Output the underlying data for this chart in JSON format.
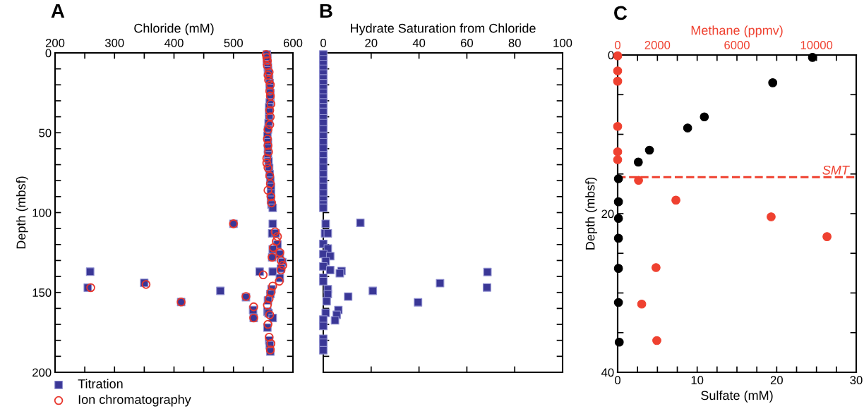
{
  "chart_data": [
    {
      "type": "scatter",
      "xlabel": "Chloride (mM)",
      "ylabel": "Depth (mbsf)",
      "annotations": [
        "A"
      ],
      "xlim": [
        200,
        600
      ],
      "xticks": [
        200,
        {
          "value": 250,
          "label": null
        },
        300,
        {
          "value": 350,
          "label": null
        },
        400,
        {
          "value": 450,
          "label": null
        },
        500,
        {
          "value": 550,
          "label": null
        },
        600
      ],
      "ylim": [
        200,
        0
      ],
      "yticks": [
        0,
        {
          "value": 10,
          "label": null
        },
        {
          "value": 20,
          "label": null
        },
        {
          "value": 30,
          "label": null
        },
        {
          "value": 40,
          "label": null
        },
        50,
        {
          "value": 60,
          "label": null
        },
        {
          "value": 70,
          "label": null
        },
        {
          "value": 80,
          "label": null
        },
        {
          "value": 90,
          "label": null
        },
        100,
        {
          "value": 110,
          "label": null
        },
        {
          "value": 120,
          "label": null
        },
        {
          "value": 130,
          "label": null
        },
        {
          "value": 140,
          "label": null
        },
        150,
        {
          "value": 160,
          "label": null
        },
        {
          "value": 170,
          "label": null
        },
        {
          "value": 180,
          "label": null
        },
        {
          "value": 190,
          "label": null
        },
        200
      ],
      "legend": "bottom",
      "grid": false,
      "series": [
        {
          "name": "Titration",
          "color": "#3a3796",
          "marker": "square",
          "x": [
            556,
            557,
            556,
            557,
            558,
            558,
            559,
            560,
            561,
            561,
            562,
            562,
            561,
            560,
            560,
            560,
            559,
            558,
            557,
            558,
            558,
            558,
            559,
            560,
            561,
            562,
            563,
            563,
            563,
            564,
            566,
            500,
            566,
            565,
            571,
            574,
            566,
            578,
            565,
            582,
            580,
            259,
            544,
            566,
            578,
            350,
            255,
            564,
            478,
            562,
            521,
            558,
            412,
            533,
            557,
            559,
            534,
            566,
            557,
            560,
            561,
            562
          ],
          "values": [
            1,
            3,
            5,
            7,
            9,
            11,
            13,
            16,
            19,
            22,
            25,
            28,
            31,
            34,
            37,
            41,
            44,
            48,
            52,
            56,
            60,
            64,
            68,
            72,
            76,
            80,
            84,
            88,
            92,
            95,
            97,
            107,
            107,
            113,
            113,
            120,
            123,
            126,
            128,
            131,
            135,
            137,
            137,
            137,
            141,
            144,
            147,
            148,
            149,
            151,
            153,
            155,
            156,
            161,
            162,
            163,
            166,
            166,
            172,
            180,
            183,
            187
          ]
        },
        {
          "name": "Ion chromatography",
          "color": "#e8352b",
          "marker": "circle",
          "x": [
            555,
            556,
            557,
            557,
            560,
            558,
            559,
            562,
            561,
            562,
            563,
            561,
            562,
            561,
            558,
            557,
            558,
            559,
            556,
            556,
            558,
            561,
            562,
            558,
            563,
            564,
            500,
            570,
            574,
            572,
            567,
            578,
            565,
            580,
            583,
            580,
            550,
            577,
            260,
            353,
            566,
            563,
            560,
            412,
            521,
            534,
            534,
            557,
            561,
            558,
            560,
            563,
            562
          ],
          "values": [
            1,
            3,
            5,
            8,
            12,
            14,
            17,
            20,
            24,
            27,
            32,
            36,
            40,
            45,
            48,
            54,
            58,
            62,
            66,
            69,
            72,
            77,
            82,
            86,
            90,
            94,
            107,
            112,
            115,
            118,
            122,
            125,
            128,
            130,
            133,
            136,
            139,
            143,
            147,
            145,
            146,
            150,
            154,
            156,
            152.5,
            159,
            166,
            158,
            164,
            170,
            178,
            182,
            186
          ]
        }
      ]
    },
    {
      "type": "scatter",
      "xlabel": "Hydrate Saturation from Chloride",
      "annotations": [
        "B"
      ],
      "tick_labels": "x",
      "xlim": [
        0,
        100
      ],
      "xticks": [
        0,
        20,
        40,
        60,
        80,
        100
      ],
      "ylim": [
        200,
        0
      ],
      "yticks": [
        0,
        10,
        20,
        30,
        40,
        50,
        60,
        70,
        80,
        90,
        100,
        110,
        120,
        130,
        140,
        150,
        160,
        170,
        180,
        190,
        200
      ],
      "grid": false,
      "series": [
        {
          "color": "#3a3796",
          "marker": "square",
          "x": [
            0,
            0,
            0,
            0,
            0,
            0,
            0,
            0,
            0,
            0,
            0,
            0,
            0,
            0,
            0,
            0,
            0,
            0,
            0,
            0,
            0,
            0,
            0,
            0,
            0,
            0,
            0,
            0,
            0,
            15.5,
            1,
            0.7,
            1.9,
            0,
            1.9,
            0,
            2.9,
            1,
            0,
            68.6,
            2.9,
            7.6,
            6.9,
            0,
            0,
            48.8,
            68.4,
            1.9,
            20.7,
            1.9,
            10.4,
            1.4,
            39.6,
            6.3,
            1,
            5.6,
            4.9,
            0,
            0,
            0,
            0,
            0
          ],
          "values": [
            1,
            4,
            7,
            10,
            13,
            16,
            19,
            22,
            25,
            28,
            31,
            34,
            37,
            41,
            44,
            48,
            52,
            56,
            60,
            64,
            68,
            72,
            76,
            80,
            84,
            88,
            92,
            95,
            97,
            106.4,
            107,
            113,
            113,
            119.6,
            122.5,
            126,
            127.3,
            130.5,
            133.7,
            137.2,
            136,
            136.6,
            138,
            140.8,
            143,
            144.2,
            146.9,
            148,
            149,
            151,
            152.6,
            155.5,
            156.2,
            161,
            162.8,
            164,
            167.5,
            167,
            171,
            179,
            181.5,
            186.2
          ]
        }
      ]
    },
    {
      "type": "scatter",
      "xlabel": "Sulfate (mM)",
      "x2label": "Methane (ppmv)",
      "ylabel": "Depth (mbsf)",
      "annotations": [
        "C"
      ],
      "xlim": [
        0,
        30
      ],
      "xticks": [
        0,
        {
          "value": 2.5,
          "label": null
        },
        {
          "value": 5,
          "label": null
        },
        {
          "value": 7.5,
          "label": null
        },
        10,
        {
          "value": 12.5,
          "label": null
        },
        {
          "value": 15,
          "label": null
        },
        {
          "value": 17.5,
          "label": null
        },
        20,
        {
          "value": 22.5,
          "label": null
        },
        {
          "value": 25,
          "label": null
        },
        {
          "value": 27.5,
          "label": null
        },
        30
      ],
      "x2lim": [
        0,
        12000
      ],
      "x2ticks": [
        0,
        {
          "value": 1000,
          "label": null
        },
        2000,
        {
          "value": 3000,
          "label": null
        },
        {
          "value": 4000,
          "label": null
        },
        {
          "value": 5000,
          "label": null
        },
        6000,
        {
          "value": 7000,
          "label": null
        },
        {
          "value": 8000,
          "label": null
        },
        {
          "value": 9000,
          "label": null
        },
        10000,
        {
          "value": 11000,
          "label": null
        },
        {
          "value": 12000,
          "label": null
        }
      ],
      "ylim": [
        40,
        0
      ],
      "yticks": [
        0,
        {
          "value": 5,
          "label": null
        },
        {
          "value": 10,
          "label": null
        },
        {
          "value": 15,
          "label": null
        },
        20,
        {
          "value": 25,
          "label": null
        },
        {
          "value": 30,
          "label": null
        },
        {
          "value": 35,
          "label": null
        },
        40
      ],
      "grid": false,
      "ref_lines": [
        {
          "axis": "y",
          "value": 15.4,
          "label": "SMT",
          "color": "#ef4130",
          "line_style": "dashed"
        }
      ],
      "series": [
        {
          "color": "#000000",
          "marker": "circle",
          "x": [
            24.5,
            19.5,
            10.9,
            8.8,
            4.0,
            2.6,
            0.1,
            0.1,
            0.1,
            0.1,
            0.1,
            0.1,
            0.2
          ],
          "values": [
            0.3,
            3.5,
            7.8,
            9.2,
            12.0,
            13.5,
            15.6,
            18.5,
            20.6,
            23.1,
            26.9,
            31.2,
            36.2
          ]
        },
        {
          "color": "#ef4130",
          "marker": "circle",
          "axis": "x2",
          "x": [
            0,
            0,
            0,
            0,
            0,
            0,
            1050,
            2930,
            7720,
            10530,
            1930,
            1210,
            1970
          ],
          "values": [
            0.1,
            2.0,
            3.3,
            9.0,
            12.2,
            13.2,
            15.8,
            18.3,
            20.4,
            22.9,
            26.8,
            31.4,
            36.0
          ]
        }
      ]
    }
  ]
}
